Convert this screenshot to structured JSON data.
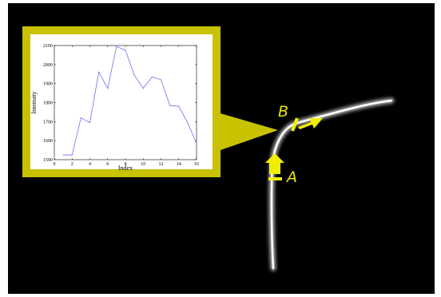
{
  "labels": {
    "marker_a": "A",
    "marker_b": "B"
  },
  "colors": {
    "background": "#000000",
    "callout": "#c9c200",
    "arrow": "#f2ee00",
    "series": "#6f6ff2"
  },
  "chart_data": {
    "type": "line",
    "xlabel": "Index",
    "ylabel": "Intensity",
    "xlim": [
      0,
      16
    ],
    "ylim": [
      1500,
      2100
    ],
    "xticks": [
      0,
      2,
      4,
      6,
      8,
      10,
      12,
      14,
      16
    ],
    "yticks": [
      1500,
      1600,
      1700,
      1800,
      1900,
      2000,
      2100
    ],
    "grid": false,
    "x": [
      1,
      2,
      3,
      4,
      5,
      6,
      7,
      8,
      9,
      10,
      11,
      12,
      13,
      14,
      15,
      16
    ],
    "values": [
      1525,
      1525,
      1720,
      1695,
      1960,
      1875,
      2095,
      2075,
      1945,
      1875,
      1935,
      1920,
      1785,
      1780,
      1695,
      1585
    ]
  }
}
